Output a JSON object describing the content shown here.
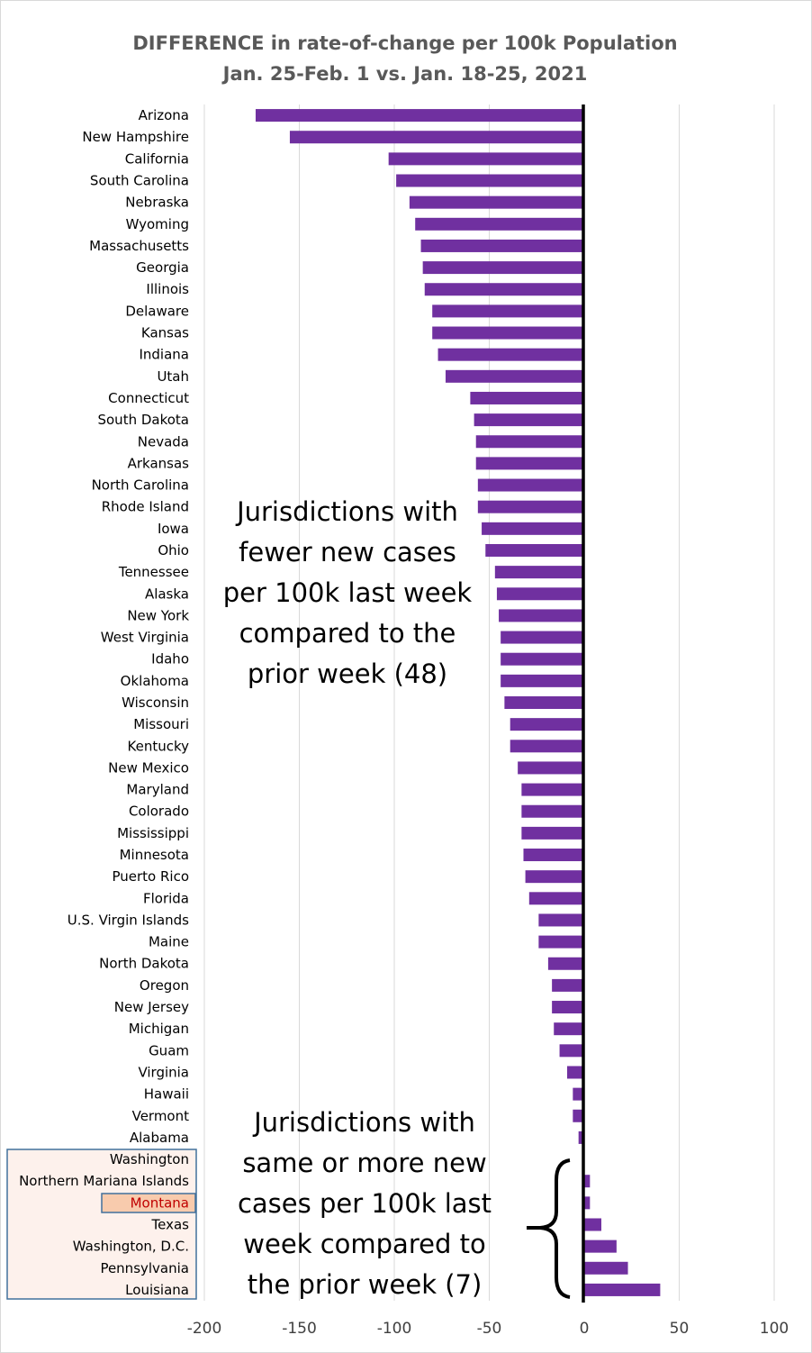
{
  "chart_data": {
    "type": "bar",
    "orientation": "horizontal",
    "title": "DIFFERENCE in rate-of-change per 100k Population",
    "subtitle": "Jan. 25-Feb. 1 vs. Jan. 18-25, 2021",
    "xlabel": "",
    "ylabel": "",
    "xlim": [
      -200,
      100
    ],
    "x_ticks": [
      -200,
      -150,
      -100,
      -50,
      0,
      50,
      100
    ],
    "grid": true,
    "bar_color": "#7030a0",
    "highlight_category": "Montana",
    "categories": [
      "Arizona",
      "New Hampshire",
      "California",
      "South Carolina",
      "Nebraska",
      "Wyoming",
      "Massachusetts",
      "Georgia",
      "Illinois",
      "Delaware",
      "Kansas",
      "Indiana",
      "Utah",
      "Connecticut",
      "South Dakota",
      "Nevada",
      "Arkansas",
      "North Carolina",
      "Rhode Island",
      "Iowa",
      "Ohio",
      "Tennessee",
      "Alaska",
      "New York",
      "West Virginia",
      "Idaho",
      "Oklahoma",
      "Wisconsin",
      "Missouri",
      "Kentucky",
      "New Mexico",
      "Maryland",
      "Colorado",
      "Mississippi",
      "Minnesota",
      "Puerto Rico",
      "Florida",
      "U.S. Virgin Islands",
      "Maine",
      "North Dakota",
      "Oregon",
      "New Jersey",
      "Michigan",
      "Guam",
      "Virginia",
      "Hawaii",
      "Vermont",
      "Alabama",
      "Washington",
      "Northern Mariana Islands",
      "Montana",
      "Texas",
      "Washington, D.C.",
      "Pennsylvania",
      "Louisiana"
    ],
    "values": [
      -173,
      -155,
      -103,
      -99,
      -92,
      -89,
      -86,
      -85,
      -84,
      -80,
      -80,
      -77,
      -73,
      -60,
      -58,
      -57,
      -57,
      -56,
      -56,
      -54,
      -52,
      -47,
      -46,
      -45,
      -44,
      -44,
      -44,
      -42,
      -39,
      -39,
      -35,
      -33,
      -33,
      -33,
      -32,
      -31,
      -29,
      -24,
      -24,
      -19,
      -17,
      -17,
      -16,
      -13,
      -9,
      -6,
      -6,
      -3,
      0,
      3,
      3,
      9,
      17,
      23,
      40
    ]
  },
  "annotations": {
    "fewer": [
      "Jurisdictions with",
      "fewer new cases",
      "per 100k last week",
      "compared to the",
      "prior week (48)"
    ],
    "more": [
      "Jurisdictions with",
      "same or more new",
      "cases per 100k last",
      "week compared to",
      "the prior week (7)"
    ]
  }
}
